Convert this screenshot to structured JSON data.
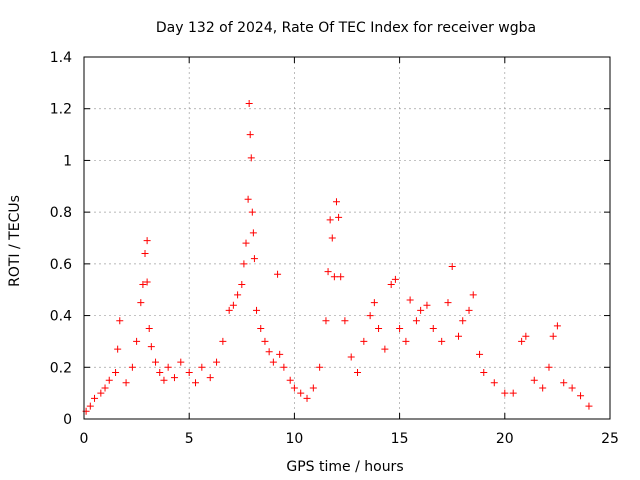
{
  "chart_data": {
    "type": "scatter",
    "title": "Day 132 of 2024, Rate Of TEC Index for receiver wgba",
    "xlabel": "GPS time / hours",
    "ylabel": "ROTI / TECUs",
    "xlim": [
      0,
      25
    ],
    "ylim": [
      0,
      1.4
    ],
    "xticks": [
      0,
      5,
      10,
      15,
      20,
      25
    ],
    "yticks": [
      0,
      0.2,
      0.4,
      0.6,
      0.8,
      1,
      1.2,
      1.4
    ],
    "xtick_labels": [
      "0",
      "5",
      "10",
      "15",
      "20",
      "25"
    ],
    "ytick_labels": [
      "0",
      "0.2",
      "0.4",
      "0.6",
      "0.8",
      "1",
      "1.2",
      "1.4"
    ],
    "grid": true,
    "marker": "plus",
    "color": "#ff0000",
    "series": [
      {
        "x": [
          0.1,
          0.3,
          0.5,
          0.8,
          1.0,
          1.2,
          1.5,
          1.6,
          1.7,
          2.0,
          2.3,
          2.5,
          2.7,
          2.8,
          2.9,
          3.0,
          3.0,
          3.1,
          3.2,
          3.4,
          3.6,
          3.8,
          4.0,
          4.3,
          4.6,
          5.0,
          5.3,
          5.6,
          6.0,
          6.3,
          6.6,
          6.9,
          7.1,
          7.3,
          7.5,
          7.6,
          7.7,
          7.8,
          7.85,
          7.9,
          7.95,
          8.0,
          8.05,
          8.1,
          8.2,
          8.4,
          8.6,
          8.8,
          9.0,
          9.2,
          9.3,
          9.5,
          9.8,
          10.0,
          10.3,
          10.6,
          10.9,
          11.2,
          11.5,
          11.6,
          11.7,
          11.8,
          11.9,
          12.0,
          12.1,
          12.2,
          12.4,
          12.7,
          13.0,
          13.3,
          13.6,
          13.8,
          14.0,
          14.3,
          14.6,
          14.8,
          15.0,
          15.3,
          15.5,
          15.8,
          16.0,
          16.3,
          16.6,
          17.0,
          17.3,
          17.5,
          17.8,
          18.0,
          18.3,
          18.5,
          18.8,
          19.0,
          19.5,
          20.0,
          20.4,
          20.8,
          21.0,
          21.4,
          21.8,
          22.1,
          22.3,
          22.5,
          22.8,
          23.2,
          23.6,
          24.0
        ],
        "y": [
          0.03,
          0.05,
          0.08,
          0.1,
          0.12,
          0.15,
          0.18,
          0.27,
          0.38,
          0.14,
          0.2,
          0.3,
          0.45,
          0.52,
          0.64,
          0.69,
          0.53,
          0.35,
          0.28,
          0.22,
          0.18,
          0.15,
          0.2,
          0.16,
          0.22,
          0.18,
          0.14,
          0.2,
          0.16,
          0.22,
          0.3,
          0.42,
          0.44,
          0.48,
          0.52,
          0.6,
          0.68,
          0.85,
          1.22,
          1.1,
          1.01,
          0.8,
          0.72,
          0.62,
          0.42,
          0.35,
          0.3,
          0.26,
          0.22,
          0.56,
          0.25,
          0.2,
          0.15,
          0.12,
          0.1,
          0.08,
          0.12,
          0.2,
          0.38,
          0.57,
          0.77,
          0.7,
          0.55,
          0.84,
          0.78,
          0.55,
          0.38,
          0.24,
          0.18,
          0.3,
          0.4,
          0.45,
          0.35,
          0.27,
          0.52,
          0.54,
          0.35,
          0.3,
          0.46,
          0.38,
          0.42,
          0.44,
          0.35,
          0.3,
          0.45,
          0.59,
          0.32,
          0.38,
          0.42,
          0.48,
          0.25,
          0.18,
          0.14,
          0.1,
          0.1,
          0.3,
          0.32,
          0.15,
          0.12,
          0.2,
          0.32,
          0.36,
          0.14,
          0.12,
          0.09,
          0.05
        ]
      }
    ]
  }
}
